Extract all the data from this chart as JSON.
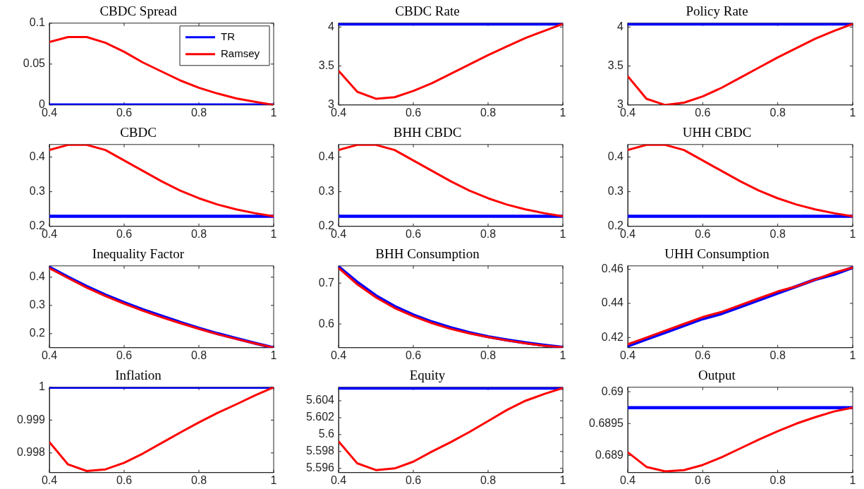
{
  "chart_data": [
    {
      "type": "line",
      "title": "CBDC Spread",
      "x": [
        0.4,
        0.45,
        0.5,
        0.55,
        0.6,
        0.65,
        0.7,
        0.75,
        0.8,
        0.85,
        0.9,
        0.95,
        1
      ],
      "xlim": [
        0.4,
        1
      ],
      "xticks": [
        0.4,
        0.6,
        0.8,
        1
      ],
      "ylim": [
        0,
        0.1
      ],
      "yticks": [
        0,
        0.05,
        0.1
      ],
      "legend": "top right",
      "series": [
        {
          "name": "TR",
          "color": "#0000ff",
          "values": [
            0,
            0,
            0,
            0,
            0,
            0,
            0,
            0,
            0,
            0,
            0,
            0,
            0
          ]
        },
        {
          "name": "Ramsey",
          "color": "#ff0000",
          "values": [
            0.077,
            0.083,
            0.083,
            0.076,
            0.065,
            0.052,
            0.041,
            0.03,
            0.021,
            0.014,
            0.008,
            0.004,
            0
          ]
        }
      ]
    },
    {
      "type": "line",
      "title": "CBDC Rate",
      "x": [
        0.4,
        0.45,
        0.5,
        0.55,
        0.6,
        0.65,
        0.7,
        0.75,
        0.8,
        0.85,
        0.9,
        0.95,
        1
      ],
      "xlim": [
        0.4,
        1
      ],
      "xticks": [
        0.4,
        0.6,
        0.8,
        1
      ],
      "ylim": [
        3,
        4.05
      ],
      "yticks": [
        3,
        3.5,
        4
      ],
      "series": [
        {
          "color": "#0000ff",
          "values": [
            4.04,
            4.04,
            4.04,
            4.04,
            4.04,
            4.04,
            4.04,
            4.04,
            4.04,
            4.04,
            4.04,
            4.04,
            4.04
          ]
        },
        {
          "color": "#ff0000",
          "values": [
            3.44,
            3.17,
            3.08,
            3.1,
            3.18,
            3.28,
            3.4,
            3.52,
            3.64,
            3.75,
            3.86,
            3.95,
            4.04
          ]
        }
      ]
    },
    {
      "type": "line",
      "title": "Policy Rate",
      "x": [
        0.4,
        0.45,
        0.5,
        0.55,
        0.6,
        0.65,
        0.7,
        0.75,
        0.8,
        0.85,
        0.9,
        0.95,
        1
      ],
      "xlim": [
        0.4,
        1
      ],
      "xticks": [
        0.4,
        0.6,
        0.8,
        1
      ],
      "ylim": [
        3,
        4.05
      ],
      "yticks": [
        3,
        3.5,
        4
      ],
      "series": [
        {
          "color": "#0000ff",
          "values": [
            4.04,
            4.04,
            4.04,
            4.04,
            4.04,
            4.04,
            4.04,
            4.04,
            4.04,
            4.04,
            4.04,
            4.04,
            4.04
          ]
        },
        {
          "color": "#ff0000",
          "values": [
            3.37,
            3.08,
            3.0,
            3.03,
            3.11,
            3.22,
            3.35,
            3.48,
            3.61,
            3.73,
            3.85,
            3.95,
            4.04
          ]
        }
      ]
    },
    {
      "type": "line",
      "title": "CBDC",
      "x": [
        0.4,
        0.45,
        0.5,
        0.55,
        0.6,
        0.65,
        0.7,
        0.75,
        0.8,
        0.85,
        0.9,
        0.95,
        1
      ],
      "xlim": [
        0.4,
        1
      ],
      "xticks": [
        0.4,
        0.6,
        0.8,
        1
      ],
      "ylim": [
        0.2,
        0.436
      ],
      "yticks": [
        0.2,
        0.3,
        0.4
      ],
      "series": [
        {
          "color": "#0000ff",
          "values": [
            0.229,
            0.229,
            0.229,
            0.229,
            0.229,
            0.229,
            0.229,
            0.229,
            0.229,
            0.229,
            0.229,
            0.229,
            0.229
          ]
        },
        {
          "color": "#ff0000",
          "values": [
            0.42,
            0.435,
            0.435,
            0.42,
            0.39,
            0.36,
            0.33,
            0.303,
            0.281,
            0.263,
            0.249,
            0.238,
            0.229
          ]
        }
      ]
    },
    {
      "type": "line",
      "title": "BHH CBDC",
      "x": [
        0.4,
        0.45,
        0.5,
        0.55,
        0.6,
        0.65,
        0.7,
        0.75,
        0.8,
        0.85,
        0.9,
        0.95,
        1
      ],
      "xlim": [
        0.4,
        1
      ],
      "xticks": [
        0.4,
        0.6,
        0.8,
        1
      ],
      "ylim": [
        0.2,
        0.436
      ],
      "yticks": [
        0.2,
        0.3,
        0.4
      ],
      "series": [
        {
          "color": "#0000ff",
          "values": [
            0.229,
            0.229,
            0.229,
            0.229,
            0.229,
            0.229,
            0.229,
            0.229,
            0.229,
            0.229,
            0.229,
            0.229,
            0.229
          ]
        },
        {
          "color": "#ff0000",
          "values": [
            0.42,
            0.435,
            0.435,
            0.42,
            0.39,
            0.36,
            0.33,
            0.303,
            0.281,
            0.263,
            0.249,
            0.238,
            0.229
          ]
        }
      ]
    },
    {
      "type": "line",
      "title": "UHH CBDC",
      "x": [
        0.4,
        0.45,
        0.5,
        0.55,
        0.6,
        0.65,
        0.7,
        0.75,
        0.8,
        0.85,
        0.9,
        0.95,
        1
      ],
      "xlim": [
        0.4,
        1
      ],
      "xticks": [
        0.4,
        0.6,
        0.8,
        1
      ],
      "ylim": [
        0.2,
        0.436
      ],
      "yticks": [
        0.2,
        0.3,
        0.4
      ],
      "series": [
        {
          "color": "#0000ff",
          "values": [
            0.229,
            0.229,
            0.229,
            0.229,
            0.229,
            0.229,
            0.229,
            0.229,
            0.229,
            0.229,
            0.229,
            0.229,
            0.229
          ]
        },
        {
          "color": "#ff0000",
          "values": [
            0.42,
            0.435,
            0.435,
            0.42,
            0.39,
            0.36,
            0.33,
            0.303,
            0.281,
            0.263,
            0.249,
            0.238,
            0.229
          ]
        }
      ]
    },
    {
      "type": "line",
      "title": "Inequality Factor",
      "x": [
        0.4,
        0.45,
        0.5,
        0.55,
        0.6,
        0.65,
        0.7,
        0.75,
        0.8,
        0.85,
        0.9,
        0.95,
        1
      ],
      "xlim": [
        0.4,
        1
      ],
      "xticks": [
        0.4,
        0.6,
        0.8,
        1
      ],
      "ylim": [
        0.15,
        0.44
      ],
      "yticks": [
        0.2,
        0.3,
        0.4
      ],
      "series": [
        {
          "color": "#0000ff",
          "values": [
            0.435,
            0.4,
            0.367,
            0.337,
            0.31,
            0.285,
            0.262,
            0.24,
            0.219,
            0.2,
            0.183,
            0.166,
            0.15
          ]
        },
        {
          "color": "#ff0000",
          "values": [
            0.432,
            0.397,
            0.363,
            0.333,
            0.306,
            0.281,
            0.258,
            0.237,
            0.217,
            0.198,
            0.181,
            0.165,
            0.15
          ]
        }
      ]
    },
    {
      "type": "line",
      "title": "BHH Consumption",
      "x": [
        0.4,
        0.45,
        0.5,
        0.55,
        0.6,
        0.65,
        0.7,
        0.75,
        0.8,
        0.85,
        0.9,
        0.95,
        1
      ],
      "xlim": [
        0.4,
        1
      ],
      "xticks": [
        0.4,
        0.6,
        0.8,
        1
      ],
      "ylim": [
        0.542,
        0.742
      ],
      "yticks": [
        0.6,
        0.7
      ],
      "series": [
        {
          "color": "#0000ff",
          "values": [
            0.74,
            0.702,
            0.669,
            0.643,
            0.622,
            0.605,
            0.591,
            0.579,
            0.569,
            0.561,
            0.554,
            0.548,
            0.543
          ]
        },
        {
          "color": "#ff0000",
          "values": [
            0.737,
            0.697,
            0.665,
            0.639,
            0.619,
            0.602,
            0.588,
            0.577,
            0.568,
            0.56,
            0.553,
            0.547,
            0.543
          ]
        }
      ]
    },
    {
      "type": "line",
      "title": "UHH Consumption",
      "x": [
        0.4,
        0.45,
        0.5,
        0.55,
        0.6,
        0.65,
        0.7,
        0.75,
        0.8,
        0.85,
        0.9,
        0.95,
        1
      ],
      "xlim": [
        0.4,
        1
      ],
      "xticks": [
        0.4,
        0.6,
        0.8,
        1
      ],
      "ylim": [
        0.414,
        0.462
      ],
      "yticks": [
        0.42,
        0.44,
        0.46
      ],
      "series": [
        {
          "color": "#0000ff",
          "values": [
            0.415,
            0.419,
            0.423,
            0.427,
            0.431,
            0.434,
            0.438,
            0.442,
            0.446,
            0.45,
            0.454,
            0.457,
            0.461
          ]
        },
        {
          "color": "#ff0000",
          "values": [
            0.416,
            0.42,
            0.424,
            0.428,
            0.432,
            0.435,
            0.439,
            0.443,
            0.447,
            0.45,
            0.454,
            0.458,
            0.461
          ]
        }
      ]
    },
    {
      "type": "line",
      "title": "Inflation",
      "x": [
        0.4,
        0.45,
        0.5,
        0.55,
        0.6,
        0.65,
        0.7,
        0.75,
        0.8,
        0.85,
        0.9,
        0.95,
        1
      ],
      "xlim": [
        0.4,
        1
      ],
      "xticks": [
        0.4,
        0.6,
        0.8,
        1
      ],
      "ylim": [
        0.9974,
        1
      ],
      "yticks": [
        0.998,
        0.999,
        1
      ],
      "series": [
        {
          "color": "#0000ff",
          "values": [
            1,
            1,
            1,
            1,
            1,
            1,
            1,
            1,
            1,
            1,
            1,
            1,
            1
          ]
        },
        {
          "color": "#ff0000",
          "values": [
            0.99833,
            0.99765,
            0.99745,
            0.9975,
            0.9977,
            0.99798,
            0.9983,
            0.99862,
            0.99893,
            0.99922,
            0.99948,
            0.99975,
            1
          ]
        }
      ]
    },
    {
      "type": "line",
      "title": "Equity",
      "x": [
        0.4,
        0.45,
        0.5,
        0.55,
        0.6,
        0.65,
        0.7,
        0.75,
        0.8,
        0.85,
        0.9,
        0.95,
        1
      ],
      "xlim": [
        0.4,
        1
      ],
      "xticks": [
        0.4,
        0.6,
        0.8,
        1
      ],
      "ylim": [
        5.5955,
        5.6056
      ],
      "yticks": [
        5.596,
        5.598,
        5.6,
        5.602,
        5.604
      ],
      "series": [
        {
          "color": "#0000ff",
          "values": [
            5.6055,
            5.6055,
            5.6055,
            5.6055,
            5.6055,
            5.6055,
            5.6055,
            5.6055,
            5.6055,
            5.6055,
            5.6055,
            5.6055,
            5.6055
          ]
        },
        {
          "color": "#ff0000",
          "values": [
            5.5992,
            5.5966,
            5.5958,
            5.596,
            5.5968,
            5.598,
            5.5991,
            5.6003,
            5.6016,
            5.6029,
            5.604,
            5.6048,
            5.6055
          ]
        }
      ]
    },
    {
      "type": "line",
      "title": "Output",
      "x": [
        0.4,
        0.45,
        0.5,
        0.55,
        0.6,
        0.65,
        0.7,
        0.75,
        0.8,
        0.85,
        0.9,
        0.95,
        1
      ],
      "xlim": [
        0.4,
        1
      ],
      "xticks": [
        0.4,
        0.6,
        0.8,
        1
      ],
      "ylim": [
        0.68873,
        0.69007
      ],
      "yticks": [
        0.689,
        0.6895,
        0.69
      ],
      "series": [
        {
          "color": "#0000ff",
          "values": [
            0.68975,
            0.68975,
            0.68975,
            0.68975,
            0.68975,
            0.68975,
            0.68975,
            0.68975,
            0.68975,
            0.68975,
            0.68975,
            0.68975,
            0.68975
          ]
        },
        {
          "color": "#ff0000",
          "values": [
            0.68905,
            0.68882,
            0.68875,
            0.68877,
            0.68885,
            0.68897,
            0.68911,
            0.68925,
            0.68938,
            0.6895,
            0.6896,
            0.68969,
            0.68975
          ]
        }
      ]
    }
  ]
}
